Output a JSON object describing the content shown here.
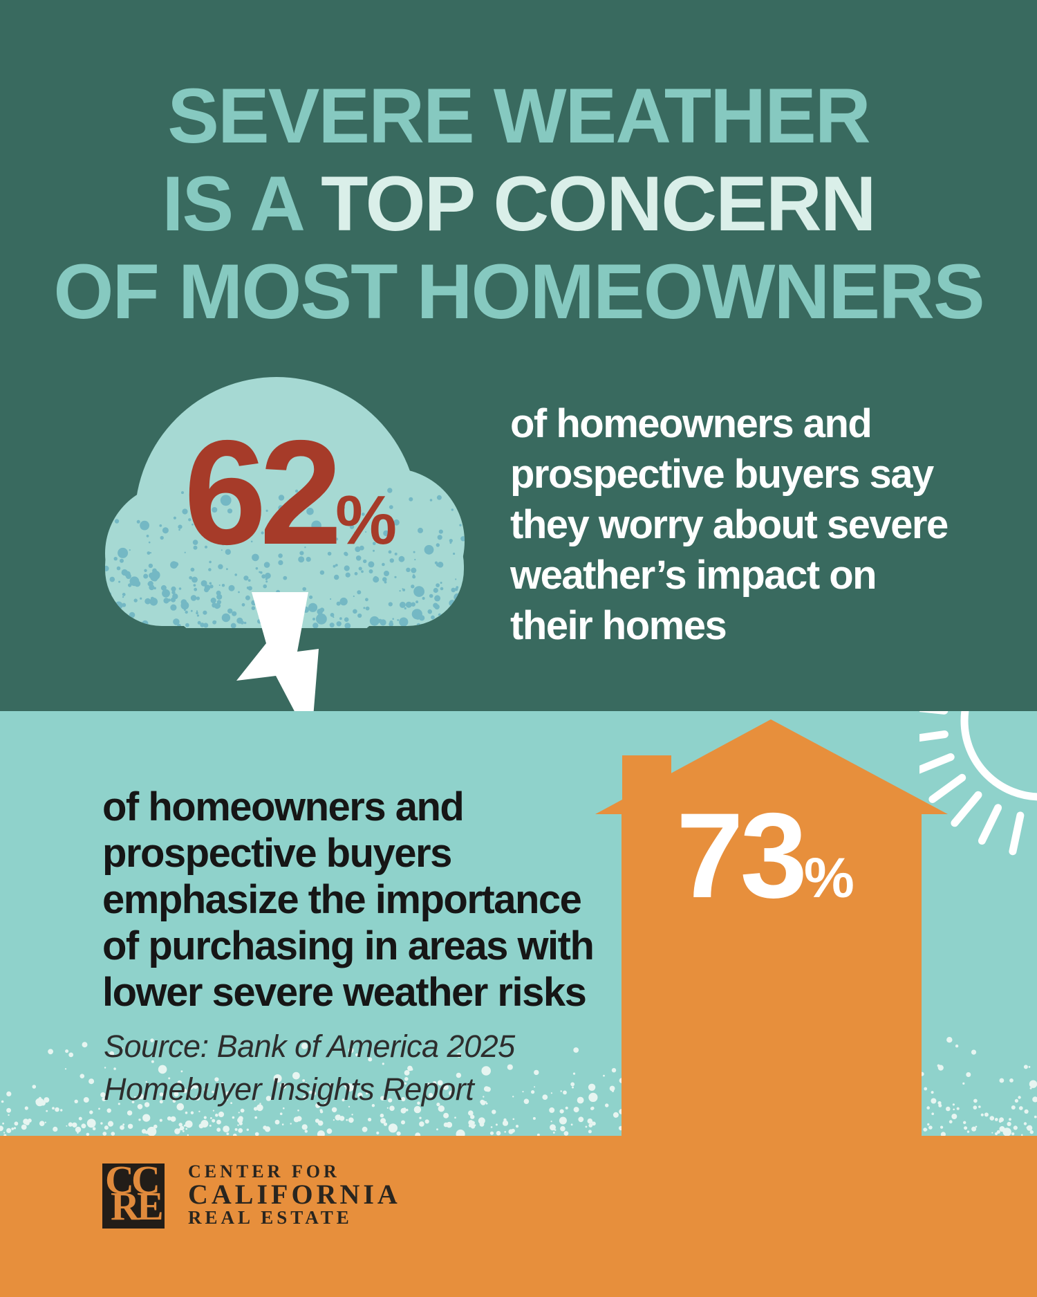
{
  "palette": {
    "dark_teal": "#396a5f",
    "light_teal": "#8fd2cb",
    "cloud": "#a6d9d3",
    "speckle_blue": "#74b8c4",
    "speckle_cream": "#e7f5f1",
    "teal_text": "#86c9c0",
    "mint": "#daefe9",
    "red": "#a63b29",
    "orange": "#e78f3c",
    "black_text": "#161616",
    "source_text": "#2d2d2d",
    "logo_black": "#221d18",
    "logo_letter": "#e08a3c",
    "logo_text": "#29251f",
    "white": "#ffffff"
  },
  "headline": {
    "line1": "SEVERE WEATHER",
    "line2_prefix": "IS A",
    "line2_highlight": "TOP CONCERN",
    "line3": "OF MOST HOMEOWNERS"
  },
  "stat_top": {
    "value": "62",
    "unit": "%",
    "lines": [
      "of homeowners and",
      "prospective buyers say",
      "they worry about severe",
      "weather’s impact on",
      "their homes"
    ]
  },
  "stat_bottom": {
    "value": "73",
    "unit": "%",
    "lines": [
      "of homeowners and",
      "prospective buyers",
      "emphasize the importance",
      "of purchasing in areas with",
      "lower severe weather risks"
    ],
    "source_lines": [
      "Source: Bank of America 2025",
      "Homebuyer Insights Report"
    ]
  },
  "footer": {
    "logo_letters": [
      "C",
      "C",
      "R",
      "E"
    ],
    "org_lines": [
      "CENTER FOR",
      "CALIFORNIA",
      "REAL ESTATE"
    ]
  }
}
